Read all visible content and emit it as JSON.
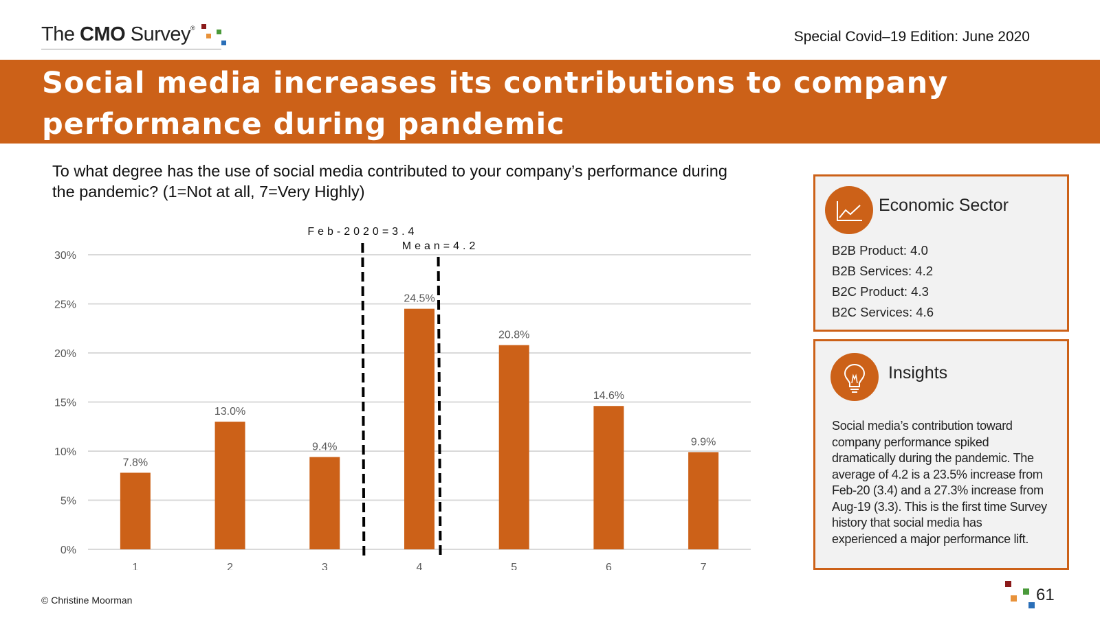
{
  "header": {
    "logo_prefix": "The",
    "logo_bold": "CMO",
    "logo_suffix": "Survey",
    "logo_reg": "®",
    "edition": "Special Covid–19 Edition: June 2020"
  },
  "banner": {
    "title": "Social media increases its contributions to company performance during pandemic"
  },
  "question": "To what degree has the use of social media contributed to your company’s performance during the pandemic? (1=Not at all, 7=Very Highly)",
  "chart_data": {
    "type": "bar",
    "categories": [
      "1",
      "2",
      "3",
      "4",
      "5",
      "6",
      "7"
    ],
    "values": [
      7.8,
      13.0,
      9.4,
      24.5,
      20.8,
      14.6,
      9.9
    ],
    "data_labels": [
      "7.8%",
      "13.0%",
      "9.4%",
      "24.5%",
      "20.8%",
      "14.6%",
      "9.9%"
    ],
    "ylim": [
      0,
      30
    ],
    "yticks": [
      0,
      5,
      10,
      15,
      20,
      25,
      30
    ],
    "ytick_labels": [
      "0%",
      "5%",
      "10%",
      "15%",
      "20%",
      "25%",
      "30%"
    ],
    "grid": true,
    "bar_color": "#cc6118",
    "reference_lines": [
      {
        "label": "Feb-2020=3.4",
        "x": 3.4
      },
      {
        "label": "Mean=4.2",
        "x": 4.2
      }
    ],
    "xlabel": "",
    "ylabel": ""
  },
  "sector_panel": {
    "title": "Economic Sector",
    "icon": "line-chart-icon",
    "items": [
      "B2B Product: 4.0",
      "B2B Services: 4.2",
      "B2C Product: 4.3",
      "B2C Services: 4.6"
    ]
  },
  "insights_panel": {
    "title": "Insights",
    "icon": "lightbulb-icon",
    "text": "Social media’s contribution toward company performance spiked dramatically during the pandemic. The average of 4.2 is a 23.5% increase from Feb-20 (3.4) and a 27.3% increase from Aug-19 (3.3). This is the first time Survey history that social media has experienced a major performance lift."
  },
  "footer": {
    "copyright": "© Christine Moorman",
    "page_number": "61"
  },
  "colors": {
    "accent": "#cc6118",
    "panel_bg": "#f2f2f2",
    "logo_red": "#8b1a1a",
    "logo_orange": "#e8923a",
    "logo_green": "#4a9a3a",
    "logo_blue": "#2a6fb8"
  }
}
